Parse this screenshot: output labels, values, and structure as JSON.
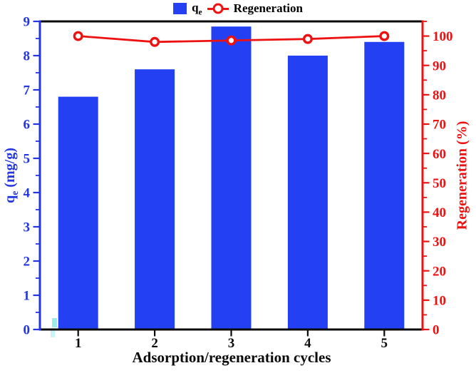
{
  "legend": {
    "qe_main": "q",
    "qe_sub": "e",
    "regeneration_label": "Regeneration"
  },
  "axes": {
    "left": {
      "label_main": "q",
      "label_sub": "e",
      "label_rest": " (mg/g)",
      "color": "#2336e0",
      "major_ticks": [
        0,
        1,
        2,
        3,
        4,
        5,
        6,
        7,
        8,
        9
      ],
      "minor_ticks": [
        0.5,
        1.5,
        2.5,
        3.5,
        4.5,
        5.5,
        6.5,
        7.5,
        8.5
      ],
      "range": [
        0,
        9
      ]
    },
    "right": {
      "label": "Regeneration (%)",
      "color": "#ee1111",
      "major_ticks": [
        0,
        10,
        20,
        30,
        40,
        50,
        60,
        70,
        80,
        90,
        100
      ],
      "minor_ticks": [
        5,
        15,
        25,
        35,
        45,
        55,
        65,
        75,
        85,
        95,
        105
      ],
      "range": [
        0,
        105
      ]
    },
    "x": {
      "label": "Adsorption/regeneration cycles",
      "color": "#0a0a0a",
      "tick_labels": [
        "1",
        "2",
        "3",
        "4",
        "5"
      ]
    }
  },
  "chart_data": {
    "type": "bar",
    "categories": [
      "1",
      "2",
      "3",
      "4",
      "5"
    ],
    "title": "",
    "xlabel": "Adsorption/regeneration cycles",
    "ylabel_left": "qe (mg/g)",
    "ylabel_right": "Regeneration (%)",
    "ylim_left": [
      0,
      9
    ],
    "ylim_right": [
      0,
      105
    ],
    "grid": false,
    "legend_position": "top-center",
    "series": [
      {
        "name": "qe",
        "type": "bar",
        "axis": "left",
        "color": "#2340f2",
        "values": [
          6.8,
          7.6,
          8.85,
          8.0,
          8.4
        ]
      },
      {
        "name": "Regeneration",
        "type": "line",
        "axis": "right",
        "color": "#ee1111",
        "marker": "open-circle",
        "values": [
          100,
          98,
          98.5,
          99,
          100
        ]
      }
    ]
  },
  "colors": {
    "bar_blue": "#2340f2",
    "axis_blue": "#2336e0",
    "line_red": "#ee1111",
    "axis_black": "#0a0a0a",
    "stray_teal": "#3fe0d8",
    "marker_fill": "#ffffff"
  }
}
